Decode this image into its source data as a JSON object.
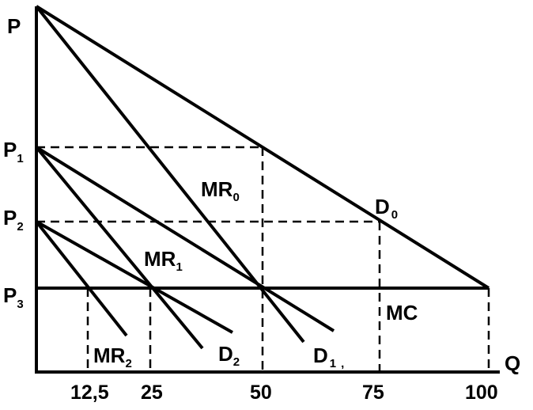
{
  "axes": {
    "y_label": "P",
    "x_label": "Q"
  },
  "price_levels": [
    {
      "id": "p1",
      "base": "P",
      "sub": "1"
    },
    {
      "id": "p2",
      "base": "P",
      "sub": "2"
    },
    {
      "id": "p3",
      "base": "P",
      "sub": "3"
    }
  ],
  "x_ticks": [
    "12,5",
    "25",
    "50",
    "75",
    "100"
  ],
  "curves": {
    "d0": {
      "base": "D",
      "sub": "0"
    },
    "mr0": {
      "base": "MR",
      "sub": "0"
    },
    "mr1": {
      "base": "MR",
      "sub": "1"
    },
    "mr2": {
      "base": "MR",
      "sub": "2"
    },
    "d1": {
      "base": "D",
      "sub": "1",
      "suffix": ","
    },
    "d2": {
      "base": "D",
      "sub": "2"
    },
    "mc": {
      "base": "MC"
    }
  },
  "colors": {
    "ink": "#000000",
    "background": "#ffffff"
  }
}
